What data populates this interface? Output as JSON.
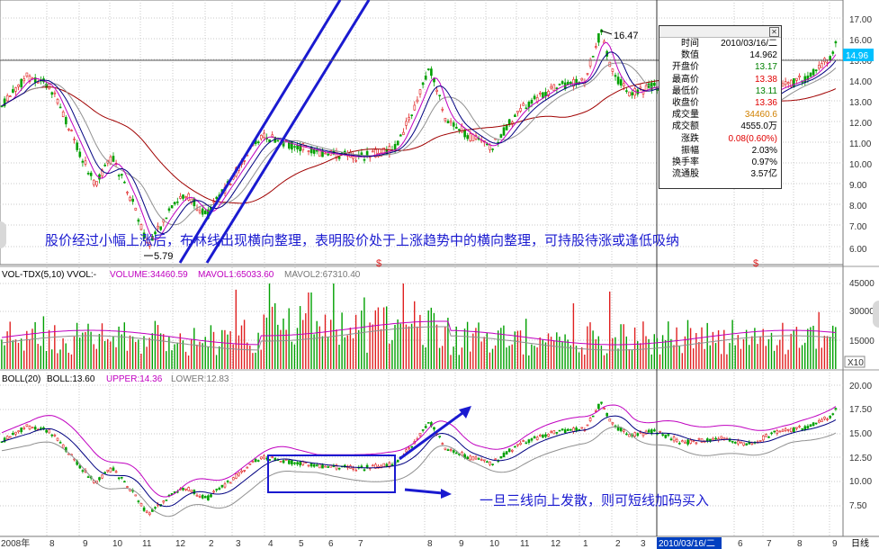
{
  "price_axis": {
    "ticks": [
      "17.00",
      "16.00",
      "15.00",
      "14.00",
      "13.00",
      "12.00",
      "11.00",
      "10.00",
      "9.00",
      "8.00",
      "7.00",
      "6.00"
    ],
    "current_price": "14.96"
  },
  "price_annotations": {
    "high_label": "16.47",
    "low_label": "5.79",
    "event_marker": "$"
  },
  "vol_panel": {
    "title": "VOL-TDX(5,10) VVOL:-",
    "volume": "VOLUME:34460.59",
    "mavol1": "MAVOL1:65033.60",
    "mavol2": "MAVOL2:67310.40",
    "ticks": [
      "45000",
      "30000",
      "15000"
    ],
    "unit": "X10"
  },
  "boll_panel": {
    "title": "BOLL(20)",
    "boll": "BOLL:13.60",
    "upper": "UPPER:14.36",
    "lower": "LOWER:12.83",
    "ticks": [
      "20.00",
      "17.50",
      "15.00",
      "12.50",
      "10.00",
      "7.50"
    ]
  },
  "x_axis": {
    "labels": [
      "2008年",
      "8",
      "9",
      "10",
      "11",
      "12",
      "2",
      "3",
      "4",
      "5",
      "6",
      "7",
      "8",
      "9",
      "10",
      "11",
      "12",
      "1",
      "2",
      "3",
      "2010/03/16/二",
      "6",
      "7",
      "8",
      "9"
    ],
    "period": "日线"
  },
  "info_box": {
    "rows": [
      {
        "k": "时间",
        "v": "2010/03/16/二",
        "color": "#000000"
      },
      {
        "k": "数值",
        "v": "14.962",
        "color": "#000000"
      },
      {
        "k": "开盘价",
        "v": "13.17",
        "color": "#008000"
      },
      {
        "k": "最高价",
        "v": "13.38",
        "color": "#e00000"
      },
      {
        "k": "最低价",
        "v": "13.11",
        "color": "#008000"
      },
      {
        "k": "收盘价",
        "v": "13.36",
        "color": "#e00000"
      },
      {
        "k": "成交量",
        "v": "34460.6",
        "color": "#d08000"
      },
      {
        "k": "成交额",
        "v": "4555.0万",
        "color": "#000000"
      },
      {
        "k": "涨跌",
        "v": "0.08(0.60%)",
        "color": "#e00000"
      },
      {
        "k": "振幅",
        "v": "2.03%",
        "color": "#000000"
      },
      {
        "k": "换手率",
        "v": "0.97%",
        "color": "#000000"
      },
      {
        "k": "流通股",
        "v": "3.57亿",
        "color": "#000000"
      }
    ]
  },
  "annotations": {
    "main_text": "股价经过小幅上涨后，布林线出现横向整理，表明股价处于上涨趋势中的横向整理，可持股待涨或逢低吸纳",
    "boll_text": "一旦三线向上发散，则可短线加码买入"
  },
  "colors": {
    "up": "#e02020",
    "down": "#00a000",
    "accent": "#1a1ad0",
    "ma_purple": "#c000c0",
    "ma_navy": "#000080",
    "ma_gray": "#909090",
    "ma_darkred": "#a00000",
    "price_tag_bg": "#00c0ff"
  }
}
